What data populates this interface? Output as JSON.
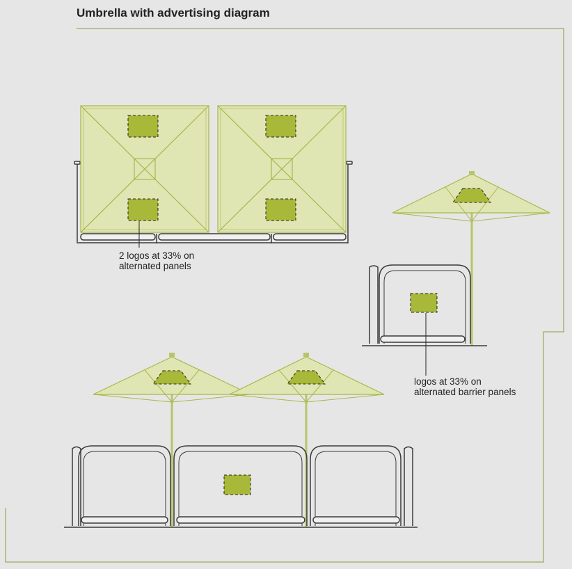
{
  "title": "Umbrella with advertising diagram",
  "callouts": {
    "plan_view": {
      "line1": "2 logos at 33% on",
      "line2": "alternated panels"
    },
    "barrier_view": {
      "line1": "logos at 33% on",
      "line2": "alternated barrier panels"
    }
  },
  "colors": {
    "background": "#e6e6e6",
    "frame_line": "#8a9a3a",
    "canopy_fill": "#e0e5b4",
    "canopy_stroke": "#a8b84a",
    "logo_fill": "#a8b838",
    "barrier_stroke": "#3a3a3a"
  }
}
